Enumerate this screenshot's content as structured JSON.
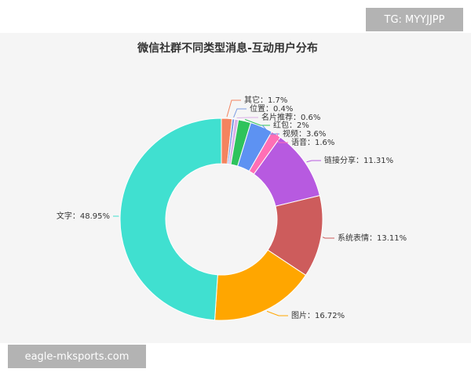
{
  "watermarks": {
    "tg": "TG: MYYJJPP",
    "site": "eagle-mksports.com"
  },
  "chart_data": {
    "type": "pie",
    "style": "donut",
    "title": "微信社群不同类型消息-互动用户分布",
    "start": "top",
    "direction": "clockwise",
    "slices": [
      {
        "name": "其它",
        "value": 1.7,
        "label": "其它：1.7%",
        "color": "#f4845f"
      },
      {
        "name": "位置",
        "value": 0.4,
        "label": "位置：0.4%",
        "color": "#7b9ce2"
      },
      {
        "name": "名片推荐",
        "value": 0.6,
        "label": "名片推荐：0.6%",
        "color": "#dab0e8"
      },
      {
        "name": "红包",
        "value": 2,
        "label": "红包：2%",
        "color": "#2ec35c"
      },
      {
        "name": "视频",
        "value": 3.6,
        "label": "视频：3.6%",
        "color": "#5d92f2"
      },
      {
        "name": "语音",
        "value": 1.6,
        "label": "语音：1.6%",
        "color": "#ff6fb5"
      },
      {
        "name": "链接分享",
        "value": 11.31,
        "label": "链接分享：11.31%",
        "color": "#b75ae0"
      },
      {
        "name": "系统表情",
        "value": 13.11,
        "label": "系统表情：13.11%",
        "color": "#cd5c5c"
      },
      {
        "name": "图片",
        "value": 16.72,
        "label": "图片：16.72%",
        "color": "#ffa600"
      },
      {
        "name": "文字",
        "value": 48.95,
        "label": "文字：48.95%",
        "color": "#40e0d0"
      }
    ]
  }
}
